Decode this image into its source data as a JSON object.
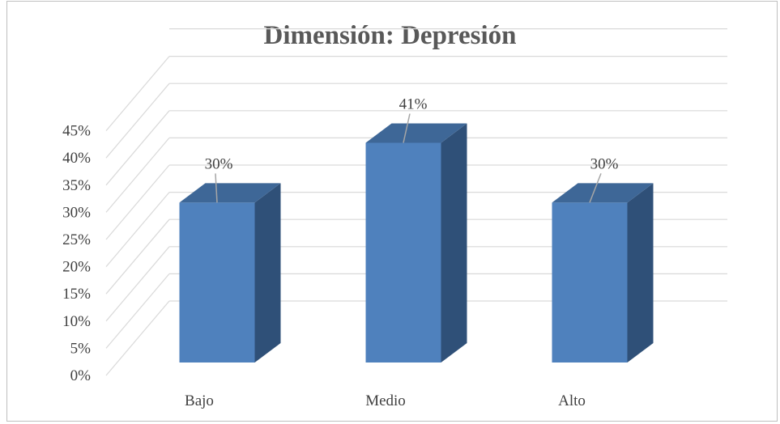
{
  "chart_data": {
    "type": "bar",
    "style": "3d-column",
    "title": "Dimensión: Depresión",
    "categories": [
      "Bajo",
      "Medio",
      "Alto"
    ],
    "values": [
      30,
      41,
      30
    ],
    "data_labels": [
      "30%",
      "41%",
      "30%"
    ],
    "yticks": [
      "0%",
      "5%",
      "10%",
      "15%",
      "20%",
      "25%",
      "30%",
      "35%",
      "40%",
      "45%"
    ],
    "ylim": [
      0,
      45
    ],
    "ylabel": "",
    "xlabel": "",
    "grid": true,
    "legend": "none",
    "colors": {
      "bar_front": "#4f81bd",
      "bar_side": "#2f5078",
      "bar_top": "#3e6797",
      "gridline": "#d9d9d9",
      "leader": "#a6a6a6"
    }
  }
}
